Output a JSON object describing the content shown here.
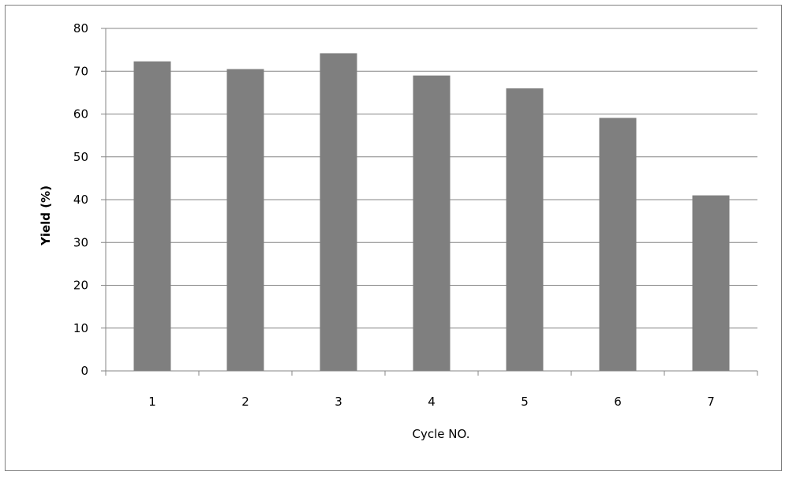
{
  "chart_data": {
    "type": "bar",
    "categories": [
      "1",
      "2",
      "3",
      "4",
      "5",
      "6",
      "7"
    ],
    "values": [
      72.3,
      70.5,
      74.2,
      69,
      66,
      59.1,
      41
    ],
    "xlabel": "Cycle NO.",
    "ylabel": "Yield (%)",
    "ylim": [
      0,
      80
    ],
    "yticks": [
      0,
      10,
      20,
      30,
      40,
      50,
      60,
      70,
      80
    ],
    "grid": "horizontal",
    "legend": "none",
    "colors": {
      "bar": "#7f7f7f",
      "grid": "#868686",
      "axis": "#868686",
      "frame": "#7f7f7f"
    }
  }
}
